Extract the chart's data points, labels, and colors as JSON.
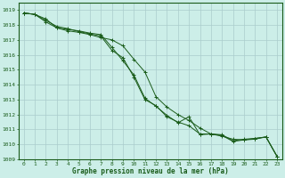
{
  "title": "Graphe pression niveau de la mer (hPa)",
  "bg_color": "#cceee8",
  "grid_color": "#aacccc",
  "line_color": "#1a5c1a",
  "xlim": [
    -0.5,
    23.5
  ],
  "ylim": [
    1009,
    1019.5
  ],
  "xticks": [
    0,
    1,
    2,
    3,
    4,
    5,
    6,
    7,
    8,
    9,
    10,
    11,
    12,
    13,
    14,
    15,
    16,
    17,
    18,
    19,
    20,
    21,
    22,
    23
  ],
  "yticks": [
    1009,
    1010,
    1011,
    1012,
    1013,
    1014,
    1015,
    1016,
    1017,
    1018,
    1019
  ],
  "line1_x": [
    0,
    1,
    2,
    3,
    4,
    5,
    6,
    7,
    8,
    9,
    10,
    11,
    12,
    13,
    14,
    15,
    16,
    17,
    18,
    19,
    20,
    21,
    22,
    23
  ],
  "line1_y": [
    1018.8,
    1018.7,
    1018.4,
    1017.8,
    1017.6,
    1017.5,
    1017.35,
    1017.15,
    1017.0,
    1016.6,
    1015.7,
    1014.85,
    1013.2,
    1012.5,
    1012.0,
    1011.6,
    1011.1,
    1010.7,
    1010.55,
    1010.35,
    1010.3,
    1010.35,
    1010.5,
    1009.2
  ],
  "line2_x": [
    0,
    1,
    2,
    3,
    4,
    5,
    6,
    7,
    8,
    9,
    10,
    11,
    12,
    13,
    14,
    15,
    16,
    17,
    18,
    19,
    20,
    21,
    22,
    23
  ],
  "line2_y": [
    1018.8,
    1018.7,
    1018.2,
    1017.8,
    1017.7,
    1017.6,
    1017.45,
    1017.35,
    1016.5,
    1015.6,
    1014.65,
    1013.1,
    1012.55,
    1011.95,
    1011.45,
    1011.85,
    1010.65,
    1010.7,
    1010.65,
    1010.25,
    1010.35,
    1010.4,
    1010.5,
    1009.2
  ],
  "line3_x": [
    0,
    1,
    2,
    3,
    4,
    5,
    6,
    7,
    8,
    9,
    10,
    11,
    12,
    13,
    14,
    15,
    16,
    17,
    18,
    19,
    20,
    21,
    22,
    23
  ],
  "line3_y": [
    1018.8,
    1018.7,
    1018.3,
    1017.9,
    1017.75,
    1017.55,
    1017.4,
    1017.25,
    1016.3,
    1015.8,
    1014.5,
    1013.0,
    1012.6,
    1011.85,
    1011.5,
    1011.25,
    1010.7,
    1010.7,
    1010.6,
    1010.2,
    1010.3,
    1010.4,
    1010.5,
    1009.2
  ],
  "marker_x1": [
    0,
    1,
    2,
    3,
    4,
    5,
    6,
    7,
    8,
    9,
    10,
    11,
    12,
    13,
    14,
    15,
    16,
    17,
    18,
    19,
    20,
    21,
    22,
    23
  ],
  "marker_x2": [
    2,
    3,
    4,
    5,
    6,
    7,
    8,
    9,
    10,
    11,
    12,
    13,
    14,
    15,
    16,
    17,
    18,
    19,
    20,
    21,
    22,
    23
  ],
  "marker_x3": [
    2,
    3,
    4,
    5,
    6,
    7,
    8,
    9,
    10,
    11,
    12,
    13,
    14,
    15,
    16,
    17,
    18,
    19,
    20,
    21,
    22,
    23
  ]
}
